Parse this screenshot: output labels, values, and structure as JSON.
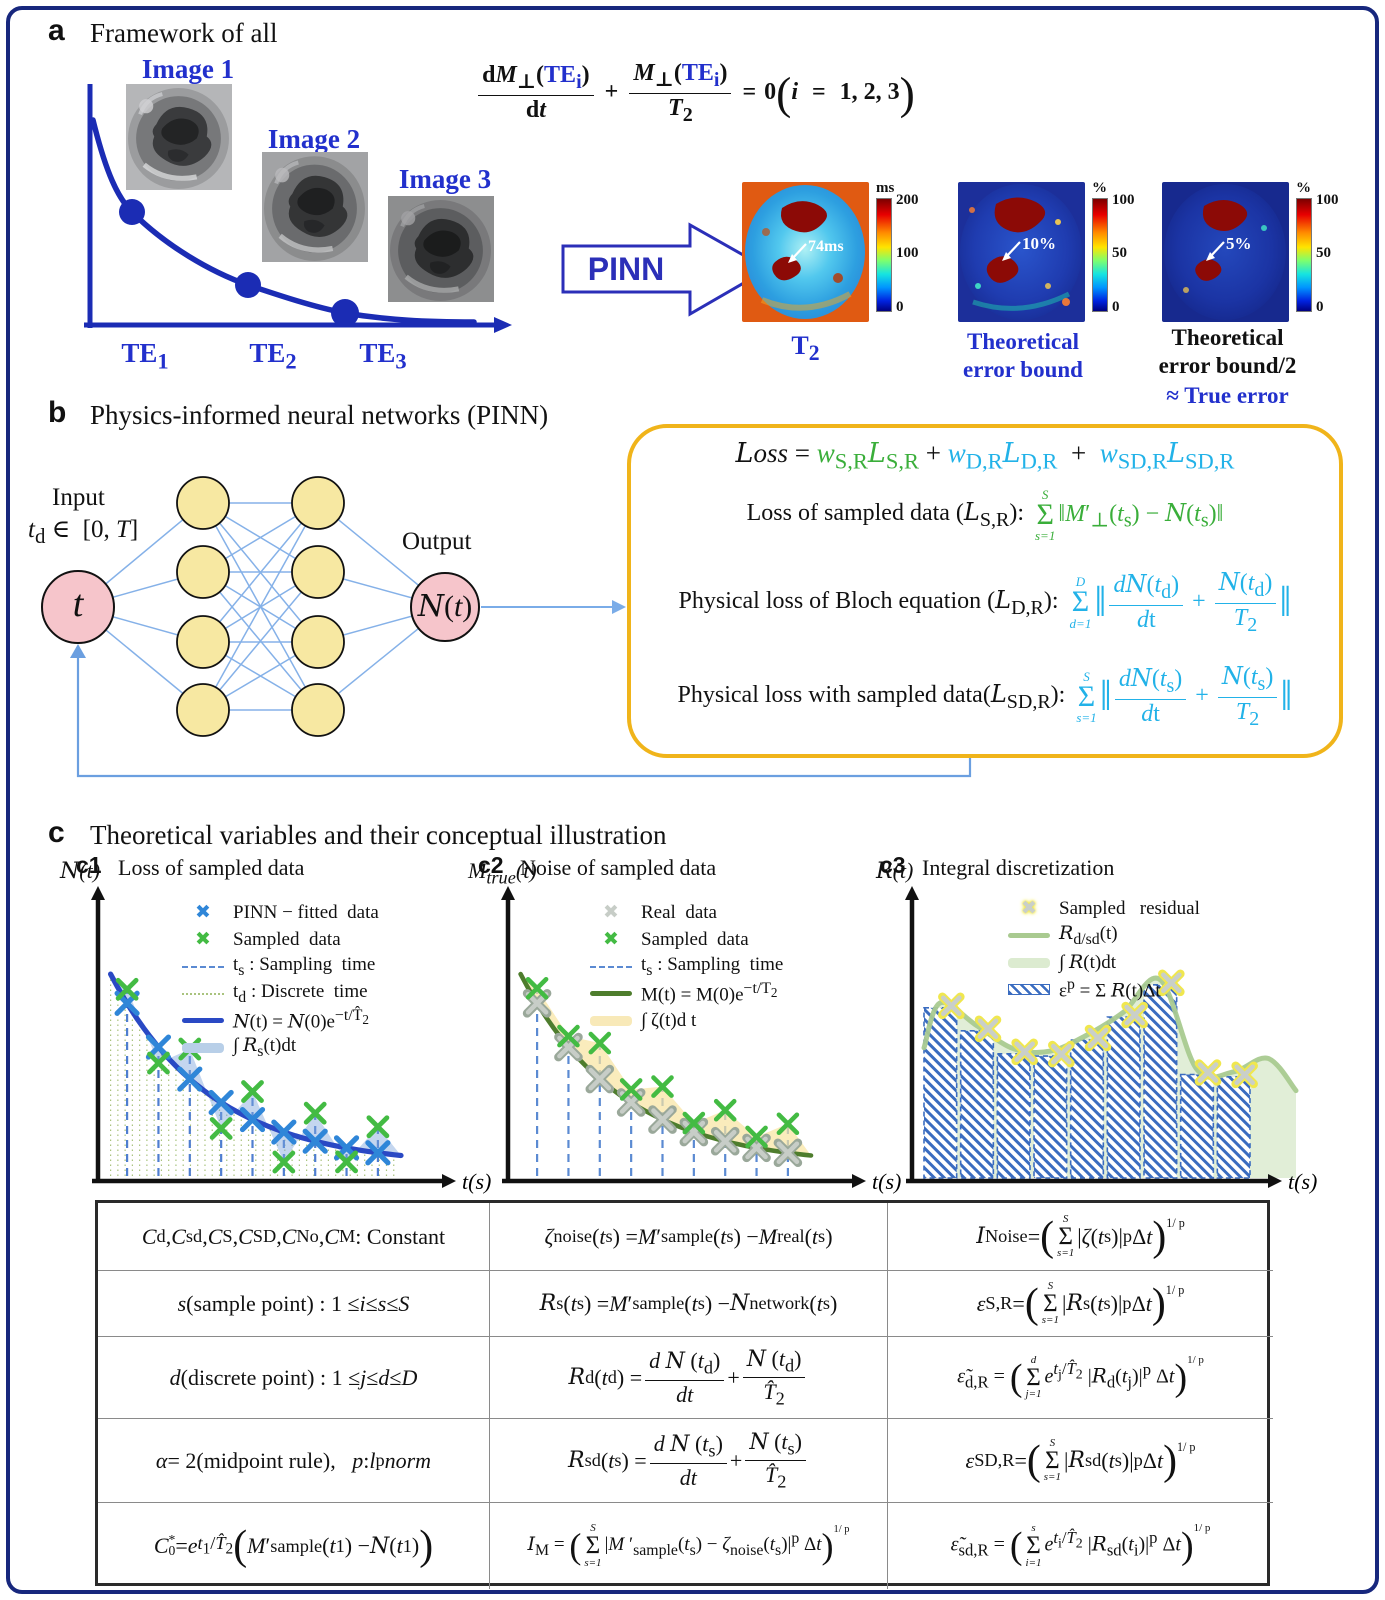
{
  "colors": {
    "accent_blue": "#1b2cb4",
    "label_blue": "#2230cc",
    "gold": "#f0b41a",
    "green": "#3aae3a",
    "cyan": "#22b2e8",
    "hatch_blue": "#3a6cc0"
  },
  "panel_a": {
    "label": "a",
    "title": "Framework of all",
    "image_labels": [
      "Image 1",
      "Image 2",
      "Image 3"
    ],
    "te_labels_html": [
      "TE<sub>1</sub>",
      "TE<sub>2</sub>",
      "TE<sub>3</sub>"
    ],
    "equation_html": "<span class='frac'><span class='nu'><b>d</b><i>M</i><sub>⊥</sub>(<span class='blu'><b>TE</b><sub>i</sub></span>)</span><span class='de'><b>d</b><i>t</i></span></span><span class='op'>+</span><span class='frac'><span class='nu'><i>M</i><sub>⊥</sub>(<span class='blu'><b>TE</b><sub>i</sub></span>)</span><span class='de'><i>T</i><sub>2</sub></span></span><span class='op'>=</span><b>0</b><span class='bigp'>(</span><i>i</i> <span class='op'>=</span> <b>1, 2, 3</b><span class='bigp'>)</span>",
    "pinn_label": "PINN",
    "maps": [
      {
        "caption_html": "T<sub>2</sub>",
        "annotation": "74ms",
        "unit": "ms",
        "ticks": [
          "200",
          "100",
          "0"
        ]
      },
      {
        "caption_html": "Theoretical<br>error bound",
        "annotation": "10%",
        "unit": "%",
        "ticks": [
          "100",
          "50",
          "0"
        ]
      },
      {
        "caption_html": "Theoretical<br>error bound/2",
        "caption2_html": "≈ True error",
        "annotation": "5%",
        "unit": "%",
        "ticks": [
          "100",
          "50",
          "0"
        ]
      }
    ]
  },
  "panel_b": {
    "label": "b",
    "title": "Physics-informed neural networks (PINN)",
    "input_caption": "Input",
    "input_domain_html": "<i>t</i><sub>d</sub> ∈&nbsp; [0, <i>T</i>]",
    "input_node_html": "<i>t</i>",
    "output_caption": "Output",
    "output_node_html": "<span class='scr'>N</span>(<i>t</i>)",
    "loss": {
      "total_html": "<span class='scr'>L</span><i>oss</i> = <span class='grn'><i>w</i><sub>S,R</sub><span class='scr'>L</span><sub>S,R</sub></span> + <span class='cyn'><i>w</i><sub>D,R</sub><span class='scr'>L</span><sub>D,R</sub></span> &nbsp;+&nbsp; <span class='cyn'><i>w</i><sub>SD,R</sub><span class='scr'>L</span><sub>SD,R</sub></span>",
      "rows": [
        {
          "label_html": "Loss of sampled data (<span class='scr'>L</span><sub>S,R</sub>):",
          "color_class": "grn",
          "formula_html": "<span class='sum'><span class='lim'>S</span><span class='sg'>Σ</span><span class='lim'>s=1</span></span>‖<i>M</i>′<sub>⊥</sub>(<i>t</i><sub>s</sub>) − <span class='scr'>N</span>(<i>t</i><sub>s</sub>)‖"
        },
        {
          "label_html": "Physical loss of Bloch equation (<span class='scr'>L</span><sub>D,R</sub>):",
          "color_class": "cyn",
          "formula_html": "<span class='sum'><span class='lim'>D</span><span class='sg'>Σ</span><span class='lim'>d=1</span></span><span class='dbl'>‖</span><span class='frac'><span class='nu'><i>d</i><span class='scr'>N</span>(<i>t</i><sub>d</sub>)</span><span class='de'><i>d</i>t</span></span> + <span class='frac'><span class='nu'><span class='scr'>N</span>(<i>t</i><sub>d</sub>)</span><span class='de'><i>T</i><sub>2</sub></span></span><span class='dbl'>‖</span>"
        },
        {
          "label_html": "Physical loss with sampled data(<span class='scr'>L</span><sub>SD,R</sub>):",
          "color_class": "cyn",
          "formula_html": "<span class='sum'><span class='lim'>S</span><span class='sg'>Σ</span><span class='lim'>s=1</span></span><span class='dbl'>‖</span><span class='frac'><span class='nu'><i>d</i><span class='scr'>N</span>(<i>t</i><sub>s</sub>)</span><span class='de'><i>d</i>t</span></span> + <span class='frac'><span class='nu'><span class='scr'>N</span>(<i>t</i><sub>s</sub>)</span><span class='de'><i>T</i><sub>2</sub></span></span><span class='dbl'>‖</span>"
        }
      ]
    }
  },
  "panel_c": {
    "label": "c",
    "title": "Theoretical variables and their conceptual illustration",
    "c1": {
      "label": "c1",
      "title": "Loss of sampled data",
      "ylabel_html": "<span class='scr'>N</span>(<i>t</i>)",
      "xlabel": "t(s)",
      "legend": [
        {
          "swatch": "sw-x",
          "color": "#2f86d8",
          "label_html": "PINN − fitted&nbsp; data"
        },
        {
          "swatch": "sw-x",
          "color": "#43bb43",
          "label_html": "Sampled&nbsp; data"
        },
        {
          "swatch": "sw-dash",
          "color": "#5b8ad2",
          "label_html": "t<sub>s</sub> : Sampling&nbsp; time"
        },
        {
          "swatch": "sw-dot",
          "color": "#a9c37e",
          "label_html": "t<sub>d</sub> : Discrete&nbsp; time"
        },
        {
          "swatch": "sw-line",
          "color": "#2a49c4",
          "label_html": "<span class='scr'>N</span>(t) = <span class='scr'>N</span>(0)e<sup>−t/T̂<sub>2</sub></sup>"
        },
        {
          "swatch": "sw-band",
          "color": "#b8cfe8",
          "label_html": "∫ <span class='scr'>R</span><sub>s</sub>(t)dt"
        }
      ],
      "plot": {
        "samples_t": [
          0.07,
          0.165,
          0.26,
          0.355,
          0.45,
          0.545,
          0.64,
          0.735,
          0.83
        ],
        "offsets": [
          -14,
          16,
          -30,
          26,
          -28,
          30,
          -28,
          14,
          -26
        ],
        "curve_color": "#2a49c4",
        "curve_width": 5.2,
        "band_color": "rgba(125,165,220,0.45)",
        "sample_line_color": "#4f7ed0",
        "discrete": true,
        "discrete_color": "#a9c37e",
        "marker_curve": {
          "color": "#2f86d8",
          "size": 10,
          "width": 5.2
        },
        "marker_off": {
          "color": "#43bb43",
          "size": 9,
          "width": 4.8
        }
      }
    },
    "c2": {
      "label": "c2",
      "title": "Noise of sampled data",
      "ylabel_html": "<i>M</i><sub>true</sub>(<i>t</i>)",
      "xlabel": "t(s)",
      "legend": [
        {
          "swatch": "sw-x",
          "color": "#c7cdc7",
          "label_html": "Real&nbsp; data"
        },
        {
          "swatch": "sw-x",
          "color": "#43bb43",
          "label_html": "Sampled&nbsp; data"
        },
        {
          "swatch": "sw-dash",
          "color": "#5b8ad2",
          "label_html": "t<sub>s</sub> : Sampling&nbsp; time"
        },
        {
          "swatch": "sw-line",
          "color": "#4e7d2d",
          "label_html": "M(t) = M(0)e<sup>−t/T<sub>2</sub></sup>"
        },
        {
          "swatch": "sw-band",
          "color": "#f8e9b8",
          "label_html": "∫ ζ(t)d t"
        }
      ],
      "plot": {
        "samples_t": [
          0.07,
          0.165,
          0.26,
          0.355,
          0.45,
          0.545,
          0.64,
          0.735,
          0.83
        ],
        "offsets": [
          -15,
          -11,
          -36,
          -13,
          -33,
          -9,
          -31,
          -11,
          -29
        ],
        "curve_color": "#4e7d2d",
        "curve_width": 4.6,
        "band_color": "rgba(248,228,160,0.7)",
        "sample_line_color": "#5b8ad2",
        "discrete": false,
        "marker_curve": {
          "color": "#c7cdc7",
          "size": 9,
          "width": 4.6,
          "halo": "#9aa89a"
        },
        "marker_off": {
          "color": "#43bb43",
          "size": 9,
          "width": 4.6
        }
      }
    },
    "c3": {
      "label": "c3",
      "title": "Integral discretization",
      "ylabel_html": "<span class='scr'>R</span>(<i>t</i>)",
      "xlabel": "t(s)",
      "legend": [
        {
          "swatch": "sw-x sw-glow",
          "color": "#c9cfc9",
          "label_html": "Sampled&nbsp;&nbsp; residual"
        },
        {
          "swatch": "sw-line",
          "color": "#a9ca90",
          "label_html": "<span class='scr'>R</span><sub>d/sd</sub>(t)"
        },
        {
          "swatch": "sw-band",
          "color": "#dcebd0",
          "label_html": "∫ <span class='scr'>R</span>(t)dt"
        },
        {
          "swatch": "sw-hatch",
          "color": "#3a6cc0",
          "label_html": "ε<sup>p</sup> = Σ <span class='scr'>R</span>(t)Δt"
        }
      ],
      "plot": {
        "heights": [
          0.74,
          0.64,
          0.54,
          0.53,
          0.6,
          0.7,
          0.84,
          0.45,
          0.44
        ],
        "bar_stroke": "#3a6cc0",
        "area_color": "#dcebd0",
        "curve_color": "#a9ca90",
        "marker": {
          "color": "#c9cfc9",
          "halo": "#f0e74e"
        }
      }
    }
  },
  "table": {
    "rows": [
      [
        "<i>C</i><sub>d</sub> , <i>C</i><sub>sd</sub> , <i>C</i><sub>S</sub> , <i>C</i><sub>SD</sub> , <i>C</i><sub>No</sub> , <i>C</i><sub>M</sub> : Constant",
        "<i>ζ</i><sub>noise</sub>(<i>t</i><sub>s</sub>) = <i>M</i> ′<sub>sample</sub>(<i>t</i><sub>s</sub>) − <i>M</i><sub>real</sub>(<i>t</i><sub>s</sub>)",
        "<span class='scr'>I</span><sub>Noise</sub> = <span class='bigp'>(</span><span class='sum'><span class='lim'>S</span><span class='sg'>Σ</span><span class='lim'>s=1</span></span>|<i>ζ</i>(<i>t</i><sub>s</sub>)|<sup>p</sup> Δ<i>t</i><span class='bigp'>)</span><sup class='hi'>1/ p</sup>"
      ],
      [
        "<i>s</i>(sample point) : 1 ≤ <i>i</i> ≤ <i>s</i> ≤ <i>S</i>",
        "<span class='scr'>R</span><sub>s</sub>(<i>t</i><sub>s</sub>) = <i>M</i> ′<sub>sample</sub>(<i>t</i><sub>s</sub>) − <span class='scr'>N</span><sub>network</sub>(<i>t</i><sub>s</sub>)",
        "<i>ε</i><sub>S,R</sub> = <span class='bigp'>(</span><span class='sum'><span class='lim'>S</span><span class='sg'>Σ</span><span class='lim'>s=1</span></span>|<span class='scr'>R</span><sub>s</sub>(<i>t</i><sub>s</sub>)|<sup>p</sup> Δ<i>t</i><span class='bigp'>)</span><sup class='hi'>1/ p</sup>"
      ],
      [
        "<i>d</i>(discrete point) : 1 ≤ <i>j</i> ≤ <i>d</i> ≤ <i>D</i>",
        "<span class='scr'>R</span><sub>d</sub>(<i>t</i><sub>d</sub>) = <span class='frac'><span class='nu'><i>d</i> <span class='scr'>N</span> (<i>t</i><sub>d</sub>)</span><span class='de'><i>dt</i></span></span> + <span class='frac'><span class='nu'><span class='scr'>N</span> (<i>t</i><sub>d</sub>)</span><span class='de'><i>T̂</i><sub>2</sub></span></span>",
        "<span class='fs20'><i>ε̃</i><sub>d,R</sub> = <span class='bigp'>(</span><span class='sum'><span class='lim'>d</span><span class='sg'>Σ</span><span class='lim'>j=1</span></span><i>e</i><sup><i>t</i><sub>j</sub>/<i>T̂</i><sub>2</sub></sup> |<span class='scr'>R</span><sub>d</sub>(<i>t</i><sub>j</sub>)|<sup>p</sup> Δ<i>t</i><span class='bigp'>)</span><sup class='hi'>1/ p</sup></span>"
      ],
      [
        "<i>α</i> = 2(midpoint rule), &nbsp;&nbsp;<i>p</i> : <i>l</i><sub>p</sub> <i>norm</i>",
        "<span class='scr'>R</span><sub>sd</sub>(<i>t</i><sub>s</sub>) = <span class='frac'><span class='nu'><i>d</i> <span class='scr'>N</span> (<i>t</i><sub>s</sub>)</span><span class='de'><i>dt</i></span></span> + <span class='frac'><span class='nu'><span class='scr'>N</span> (<i>t</i><sub>s</sub>)</span><span class='de'><i>T̂</i><sub>2</sub></span></span>",
        "<i>ε</i><sub>SD,R</sub> = <span class='bigp'>(</span><span class='sum'><span class='lim'>S</span><span class='sg'>Σ</span><span class='lim'>s=1</span></span>|<span class='scr'>R</span><sub>sd</sub>(<i>t</i><sub>s</sub>)|<sup>p</sup> Δ<i>t</i><span class='bigp'>)</span><sup class='hi'>1/ p</sup>"
      ],
      [
        "<i>C</i><span class='stk'><span>*</span><span>0</span></span> = <i>e</i><sup><i>t</i><sub>1</sub>/<i>T̂</i><sub>2</sub></sup> <span class='bigp'>(</span><i>M</i> ′<sub>sample</sub>(<i>t</i><sub>1</sub>) − <span class='scr'>N</span>(<i>t</i><sub>1</sub>)<span class='bigp'>)</span>",
        "<span class='fs19'><span class='scr'>I</span><sub>M</sub> = <span class='bigp'>(</span><span class='sum'><span class='lim'>S</span><span class='sg'>Σ</span><span class='lim'>s=1</span></span>|<i>M</i> ′<sub>sample</sub>(<i>t</i><sub>s</sub>) − <i>ζ</i><sub>noise</sub>(<i>t</i><sub>s</sub>)|<sup>p</sup> Δ<i>t</i><span class='bigp'>)</span><sup class='hi'>1/ p</sup></span>",
        "<span class='fs20'><i>ε̃</i><sub>sd,R</sub> = <span class='bigp'>(</span><span class='sum'><span class='lim'>s</span><span class='sg'>Σ</span><span class='lim'>i=1</span></span><i>e</i><sup><i>t</i><sub>i</sub>/<i>T̂</i><sub>2</sub></sup> |<span class='scr'>R</span><sub>sd</sub>(<i>t</i><sub>i</sub>)|<sup>p</sup> Δ<i>t</i><span class='bigp'>)</span><sup class='hi'>1/ p</sup></span>"
      ]
    ]
  }
}
